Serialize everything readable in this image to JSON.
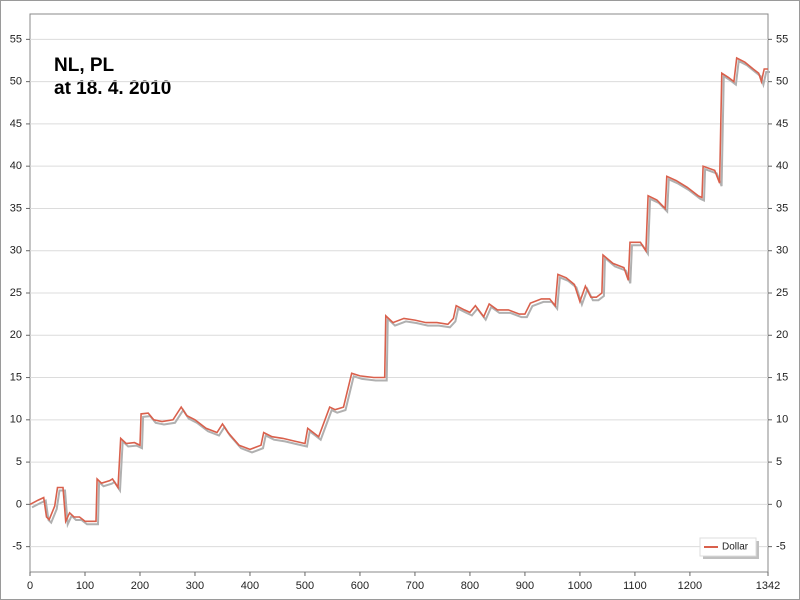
{
  "chart_data": {
    "type": "line",
    "title": "NL, PL",
    "subtitle": "at 18. 4. 2010",
    "x": [
      0,
      15,
      25,
      30,
      35,
      45,
      50,
      60,
      65,
      72,
      80,
      90,
      100,
      120,
      122,
      130,
      145,
      150,
      160,
      165,
      175,
      190,
      200,
      202,
      215,
      225,
      240,
      260,
      275,
      285,
      300,
      320,
      340,
      350,
      360,
      380,
      400,
      420,
      425,
      440,
      460,
      480,
      500,
      505,
      515,
      525,
      545,
      555,
      570,
      585,
      600,
      625,
      645,
      647,
      660,
      680,
      700,
      720,
      740,
      760,
      770,
      775,
      790,
      800,
      810,
      825,
      835,
      850,
      870,
      890,
      900,
      910,
      930,
      945,
      955,
      960,
      975,
      990,
      1000,
      1010,
      1020,
      1030,
      1040,
      1042,
      1060,
      1080,
      1088,
      1091,
      1110,
      1120,
      1124,
      1140,
      1155,
      1158,
      1175,
      1195,
      1215,
      1222,
      1224,
      1245,
      1254,
      1258,
      1270,
      1280,
      1285,
      1300,
      1315,
      1325,
      1330,
      1335,
      1342
    ],
    "series": [
      {
        "name": "Dollar",
        "color": "#d9604c",
        "values": [
          0,
          0.5,
          0.8,
          -1.5,
          -1.8,
          -0.2,
          2,
          2,
          -2,
          -1,
          -1.5,
          -1.5,
          -2,
          -2,
          3,
          2.5,
          2.8,
          3,
          2,
          7.8,
          7.2,
          7.3,
          7,
          10.7,
          10.8,
          10,
          9.8,
          10,
          11.5,
          10.5,
          10,
          9,
          8.5,
          9.5,
          8.5,
          7,
          6.5,
          7,
          8.5,
          8,
          7.8,
          7.5,
          7.2,
          9,
          8.5,
          8,
          11.5,
          11.2,
          11.5,
          15.5,
          15.2,
          15,
          15,
          22.3,
          21.5,
          22,
          21.8,
          21.5,
          21.5,
          21.3,
          22,
          23.5,
          23,
          22.7,
          23.5,
          22.2,
          23.7,
          23,
          23,
          22.5,
          22.5,
          23.8,
          24.3,
          24.3,
          23.5,
          27.2,
          26.8,
          26,
          24,
          25.8,
          24.5,
          24.5,
          25,
          29.5,
          28.5,
          28,
          26.5,
          31,
          31,
          30,
          36.5,
          36,
          35,
          38.8,
          38.3,
          37.5,
          36.5,
          36.3,
          40,
          39.5,
          38,
          51,
          50.5,
          50,
          52.8,
          52.3,
          51.5,
          51,
          50,
          51.5,
          51.5
        ]
      }
    ],
    "xlim": [
      0,
      1342
    ],
    "ylim": [
      -8,
      58
    ],
    "xticks": [
      0,
      100,
      200,
      300,
      400,
      500,
      600,
      700,
      800,
      900,
      1000,
      1100,
      1200,
      1342
    ],
    "yticks": [
      -5,
      0,
      5,
      10,
      15,
      20,
      25,
      30,
      35,
      40,
      45,
      50,
      55
    ],
    "grid": true,
    "legend": "lower right"
  }
}
